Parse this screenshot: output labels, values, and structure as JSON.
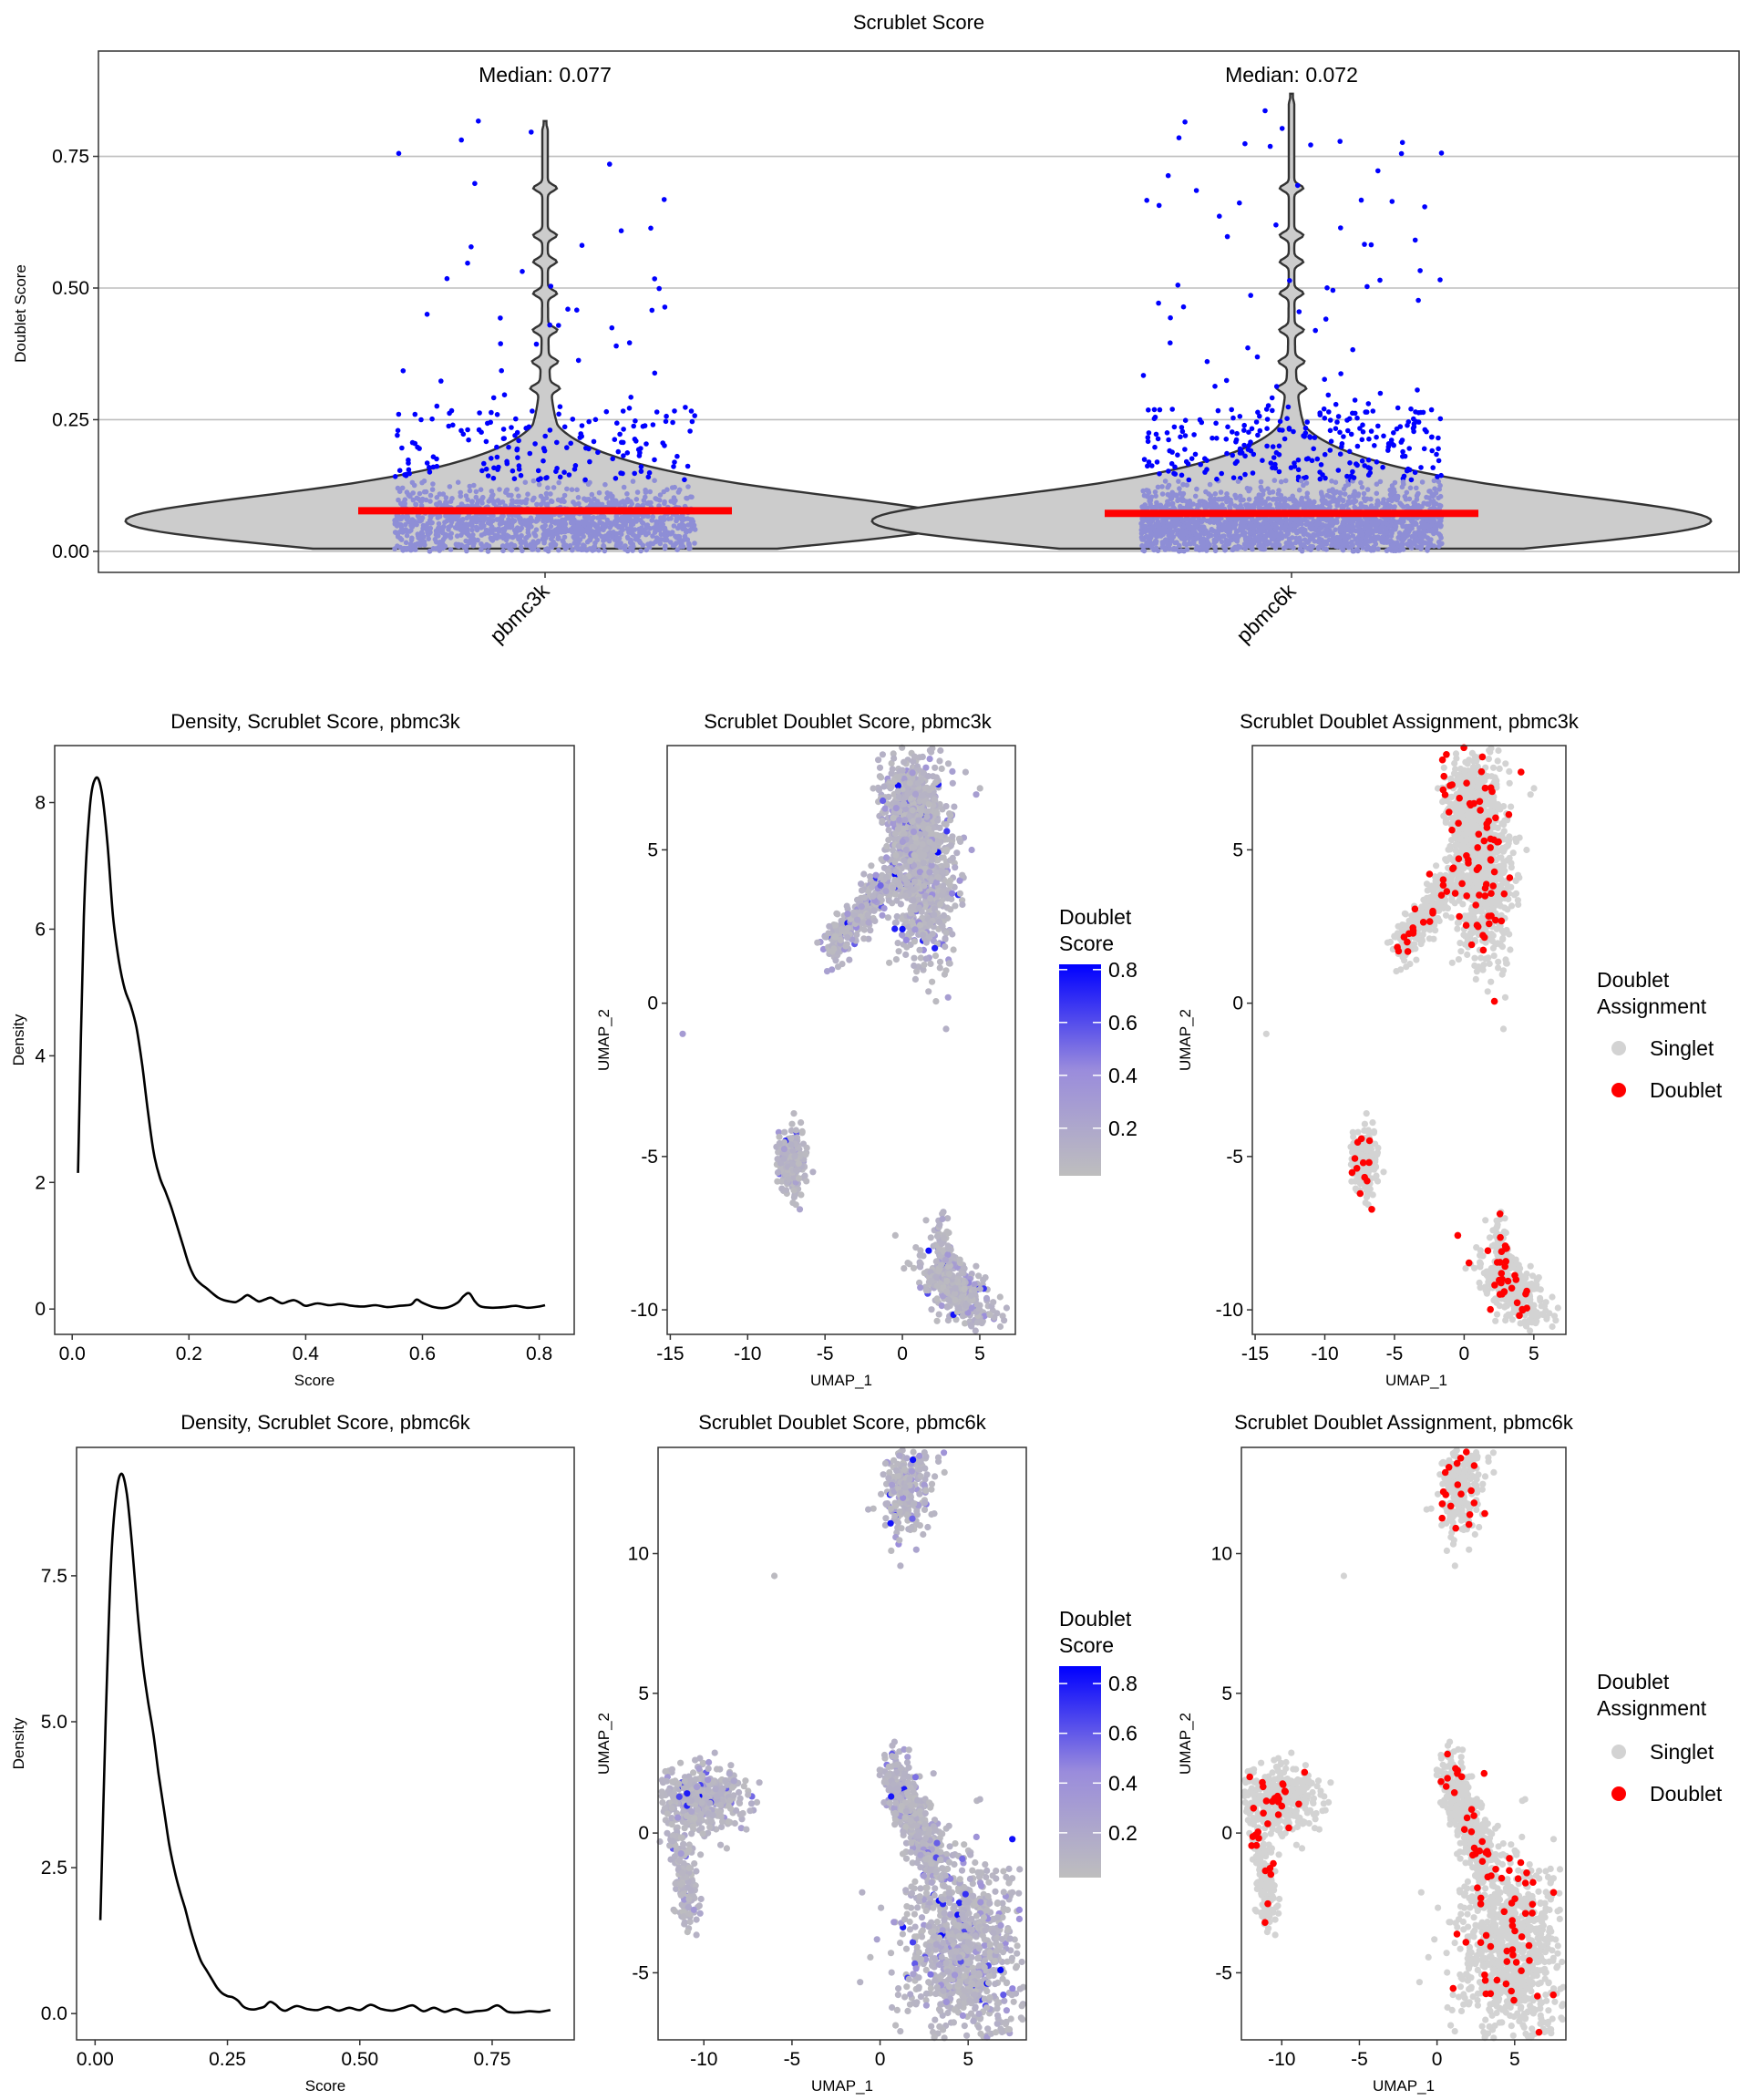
{
  "colors": {
    "violin_fill": "#cccccc",
    "outline": "#333333",
    "median_line": "#ff0000",
    "high_score_point": "#0000ff",
    "low_score_point": "#8e8ed6",
    "singlet": "#d3d3d3",
    "doublet": "#ff0000",
    "gradient_low": "#bebebe",
    "gradient_high": "#0000ff",
    "gridline": "#bebebe"
  },
  "chart_data": [
    {
      "id": "violin",
      "type": "violin",
      "title": "Scrublet Score",
      "xlabel": "",
      "ylabel": "Doublet Score",
      "categories": [
        "pbmc3k",
        "pbmc6k"
      ],
      "medians": [
        0.077,
        0.072
      ],
      "median_labels": [
        "Median: 0.077",
        "Median: 0.072"
      ],
      "max_scores": [
        0.82,
        0.87
      ],
      "yticks": [
        "0.00",
        "0.25",
        "0.50",
        "0.75"
      ],
      "ytick_values": [
        0,
        0.25,
        0.5,
        0.75
      ],
      "ylim": [
        -0.04,
        0.95
      ],
      "grid": "horizontal"
    },
    {
      "id": "density3k",
      "type": "line",
      "title": "Density, Scrublet Score, pbmc3k",
      "xlabel": "Score",
      "ylabel": "Density",
      "x": [
        0.01,
        0.02,
        0.03,
        0.04,
        0.05,
        0.06,
        0.07,
        0.08,
        0.09,
        0.1,
        0.11,
        0.12,
        0.13,
        0.14,
        0.15,
        0.16,
        0.17,
        0.18,
        0.19,
        0.2,
        0.21,
        0.22,
        0.23,
        0.24,
        0.25,
        0.26,
        0.27,
        0.28,
        0.29,
        0.3,
        0.31,
        0.32,
        0.33,
        0.34,
        0.35,
        0.36,
        0.37,
        0.38,
        0.39,
        0.4,
        0.42,
        0.44,
        0.46,
        0.48,
        0.5,
        0.52,
        0.54,
        0.56,
        0.58,
        0.59,
        0.6,
        0.62,
        0.64,
        0.66,
        0.67,
        0.68,
        0.69,
        0.7,
        0.72,
        0.74,
        0.76,
        0.78,
        0.8,
        0.81
      ],
      "y": [
        2.15,
        6.2,
        7.9,
        8.38,
        8.2,
        7.4,
        6.2,
        5.5,
        5.05,
        4.8,
        4.45,
        3.85,
        3.1,
        2.45,
        2.08,
        1.85,
        1.6,
        1.3,
        1.0,
        0.7,
        0.5,
        0.4,
        0.33,
        0.25,
        0.18,
        0.14,
        0.12,
        0.11,
        0.16,
        0.22,
        0.17,
        0.12,
        0.15,
        0.18,
        0.13,
        0.09,
        0.12,
        0.14,
        0.1,
        0.05,
        0.09,
        0.06,
        0.08,
        0.05,
        0.04,
        0.06,
        0.03,
        0.05,
        0.07,
        0.15,
        0.1,
        0.03,
        0.02,
        0.1,
        0.2,
        0.25,
        0.12,
        0.04,
        0.02,
        0.03,
        0.05,
        0.02,
        0.04,
        0.06
      ],
      "xlim": [
        -0.03,
        0.86
      ],
      "ylim": [
        -0.4,
        8.9
      ],
      "xticks": [
        "0.0",
        "0.2",
        "0.4",
        "0.6",
        "0.8"
      ],
      "xtick_values": [
        0,
        0.2,
        0.4,
        0.6,
        0.8
      ],
      "yticks": [
        "0",
        "2",
        "4",
        "6",
        "8"
      ],
      "ytick_values": [
        0,
        2,
        4,
        6,
        8
      ]
    },
    {
      "id": "score3k",
      "type": "scatter",
      "title": "Scrublet Doublet Score, pbmc3k",
      "xlabel": "UMAP_1",
      "ylabel": "UMAP_2",
      "xlim": [
        -15.2,
        7.3
      ],
      "ylim": [
        -10.8,
        8.4
      ],
      "xticks": [
        "-15",
        "-10",
        "-5",
        "0",
        "5"
      ],
      "xtick_values": [
        -15,
        -10,
        -5,
        0,
        5
      ],
      "yticks": [
        "-10",
        "-5",
        "0",
        "5"
      ],
      "ytick_values": [
        -10,
        -5,
        0,
        5
      ],
      "legend_title": [
        "Doublet",
        "Score"
      ],
      "legend_ticks": [
        "0.2",
        "0.4",
        "0.6",
        "0.8"
      ],
      "legend_tick_values": [
        0.2,
        0.4,
        0.6,
        0.8
      ],
      "legend_range": [
        0.02,
        0.82
      ],
      "legend_position": "right"
    },
    {
      "id": "assign3k",
      "type": "scatter",
      "title": "Scrublet Doublet Assignment, pbmc3k",
      "xlabel": "UMAP_1",
      "ylabel": "UMAP_2",
      "xlim": [
        -15.2,
        7.3
      ],
      "ylim": [
        -10.8,
        8.4
      ],
      "xticks": [
        "-15",
        "-10",
        "-5",
        "0",
        "5"
      ],
      "xtick_values": [
        -15,
        -10,
        -5,
        0,
        5
      ],
      "yticks": [
        "-10",
        "-5",
        "0",
        "5"
      ],
      "ytick_values": [
        -10,
        -5,
        0,
        5
      ],
      "legend_title": [
        "Doublet",
        "Assignment"
      ],
      "legend_items": [
        "Singlet",
        "Doublet"
      ],
      "legend_position": "right"
    },
    {
      "id": "density6k",
      "type": "line",
      "title": "Density, Scrublet Score, pbmc6k",
      "xlabel": "Score",
      "ylabel": "Density",
      "x": [
        0.01,
        0.02,
        0.03,
        0.04,
        0.05,
        0.06,
        0.07,
        0.08,
        0.09,
        0.1,
        0.11,
        0.12,
        0.13,
        0.14,
        0.15,
        0.16,
        0.17,
        0.18,
        0.19,
        0.2,
        0.21,
        0.22,
        0.23,
        0.24,
        0.25,
        0.26,
        0.27,
        0.28,
        0.29,
        0.3,
        0.31,
        0.32,
        0.33,
        0.34,
        0.35,
        0.36,
        0.38,
        0.4,
        0.42,
        0.44,
        0.46,
        0.48,
        0.5,
        0.52,
        0.54,
        0.56,
        0.58,
        0.6,
        0.62,
        0.64,
        0.66,
        0.68,
        0.7,
        0.72,
        0.74,
        0.76,
        0.78,
        0.8,
        0.82,
        0.84,
        0.86
      ],
      "y": [
        1.6,
        5.0,
        7.7,
        8.9,
        9.25,
        8.9,
        8.0,
        6.9,
        6.0,
        5.35,
        4.8,
        4.1,
        3.5,
        2.9,
        2.45,
        2.1,
        1.8,
        1.45,
        1.15,
        0.9,
        0.75,
        0.6,
        0.45,
        0.35,
        0.3,
        0.28,
        0.22,
        0.12,
        0.08,
        0.07,
        0.09,
        0.12,
        0.2,
        0.16,
        0.08,
        0.05,
        0.13,
        0.08,
        0.06,
        0.11,
        0.05,
        0.1,
        0.06,
        0.15,
        0.08,
        0.05,
        0.09,
        0.14,
        0.04,
        0.1,
        0.03,
        0.08,
        0.02,
        0.04,
        0.06,
        0.14,
        0.03,
        0.02,
        0.04,
        0.03,
        0.06
      ],
      "xlim": [
        -0.035,
        0.905
      ],
      "ylim": [
        -0.45,
        9.7
      ],
      "xticks": [
        "0.00",
        "0.25",
        "0.50",
        "0.75"
      ],
      "xtick_values": [
        0,
        0.25,
        0.5,
        0.75
      ],
      "yticks": [
        "0.0",
        "2.5",
        "5.0",
        "7.5"
      ],
      "ytick_values": [
        0,
        2.5,
        5,
        7.5
      ]
    },
    {
      "id": "score6k",
      "type": "scatter",
      "title": "Scrublet Doublet Score, pbmc6k",
      "xlabel": "UMAP_1",
      "ylabel": "UMAP_2",
      "xlim": [
        -12.6,
        8.3
      ],
      "ylim": [
        -7.4,
        13.8
      ],
      "xticks": [
        "-10",
        "-5",
        "0",
        "5"
      ],
      "xtick_values": [
        -10,
        -5,
        0,
        5
      ],
      "yticks": [
        "-5",
        "0",
        "5",
        "10"
      ],
      "ytick_values": [
        -5,
        0,
        5,
        10
      ],
      "legend_title": [
        "Doublet",
        "Score"
      ],
      "legend_ticks": [
        "0.2",
        "0.4",
        "0.6",
        "0.8"
      ],
      "legend_tick_values": [
        0.2,
        0.4,
        0.6,
        0.8
      ],
      "legend_range": [
        0.02,
        0.87
      ],
      "legend_position": "right"
    },
    {
      "id": "assign6k",
      "type": "scatter",
      "title": "Scrublet Doublet Assignment, pbmc6k",
      "xlabel": "UMAP_1",
      "ylabel": "UMAP_2",
      "xlim": [
        -12.6,
        8.3
      ],
      "ylim": [
        -7.4,
        13.8
      ],
      "xticks": [
        "-10",
        "-5",
        "0",
        "5"
      ],
      "xtick_values": [
        -10,
        -5,
        0,
        5
      ],
      "yticks": [
        "-5",
        "0",
        "5",
        "10"
      ],
      "ytick_values": [
        -5,
        0,
        5,
        10
      ],
      "legend_title": [
        "Doublet",
        "Assignment"
      ],
      "legend_items": [
        "Singlet",
        "Doublet"
      ],
      "legend_position": "right"
    }
  ]
}
